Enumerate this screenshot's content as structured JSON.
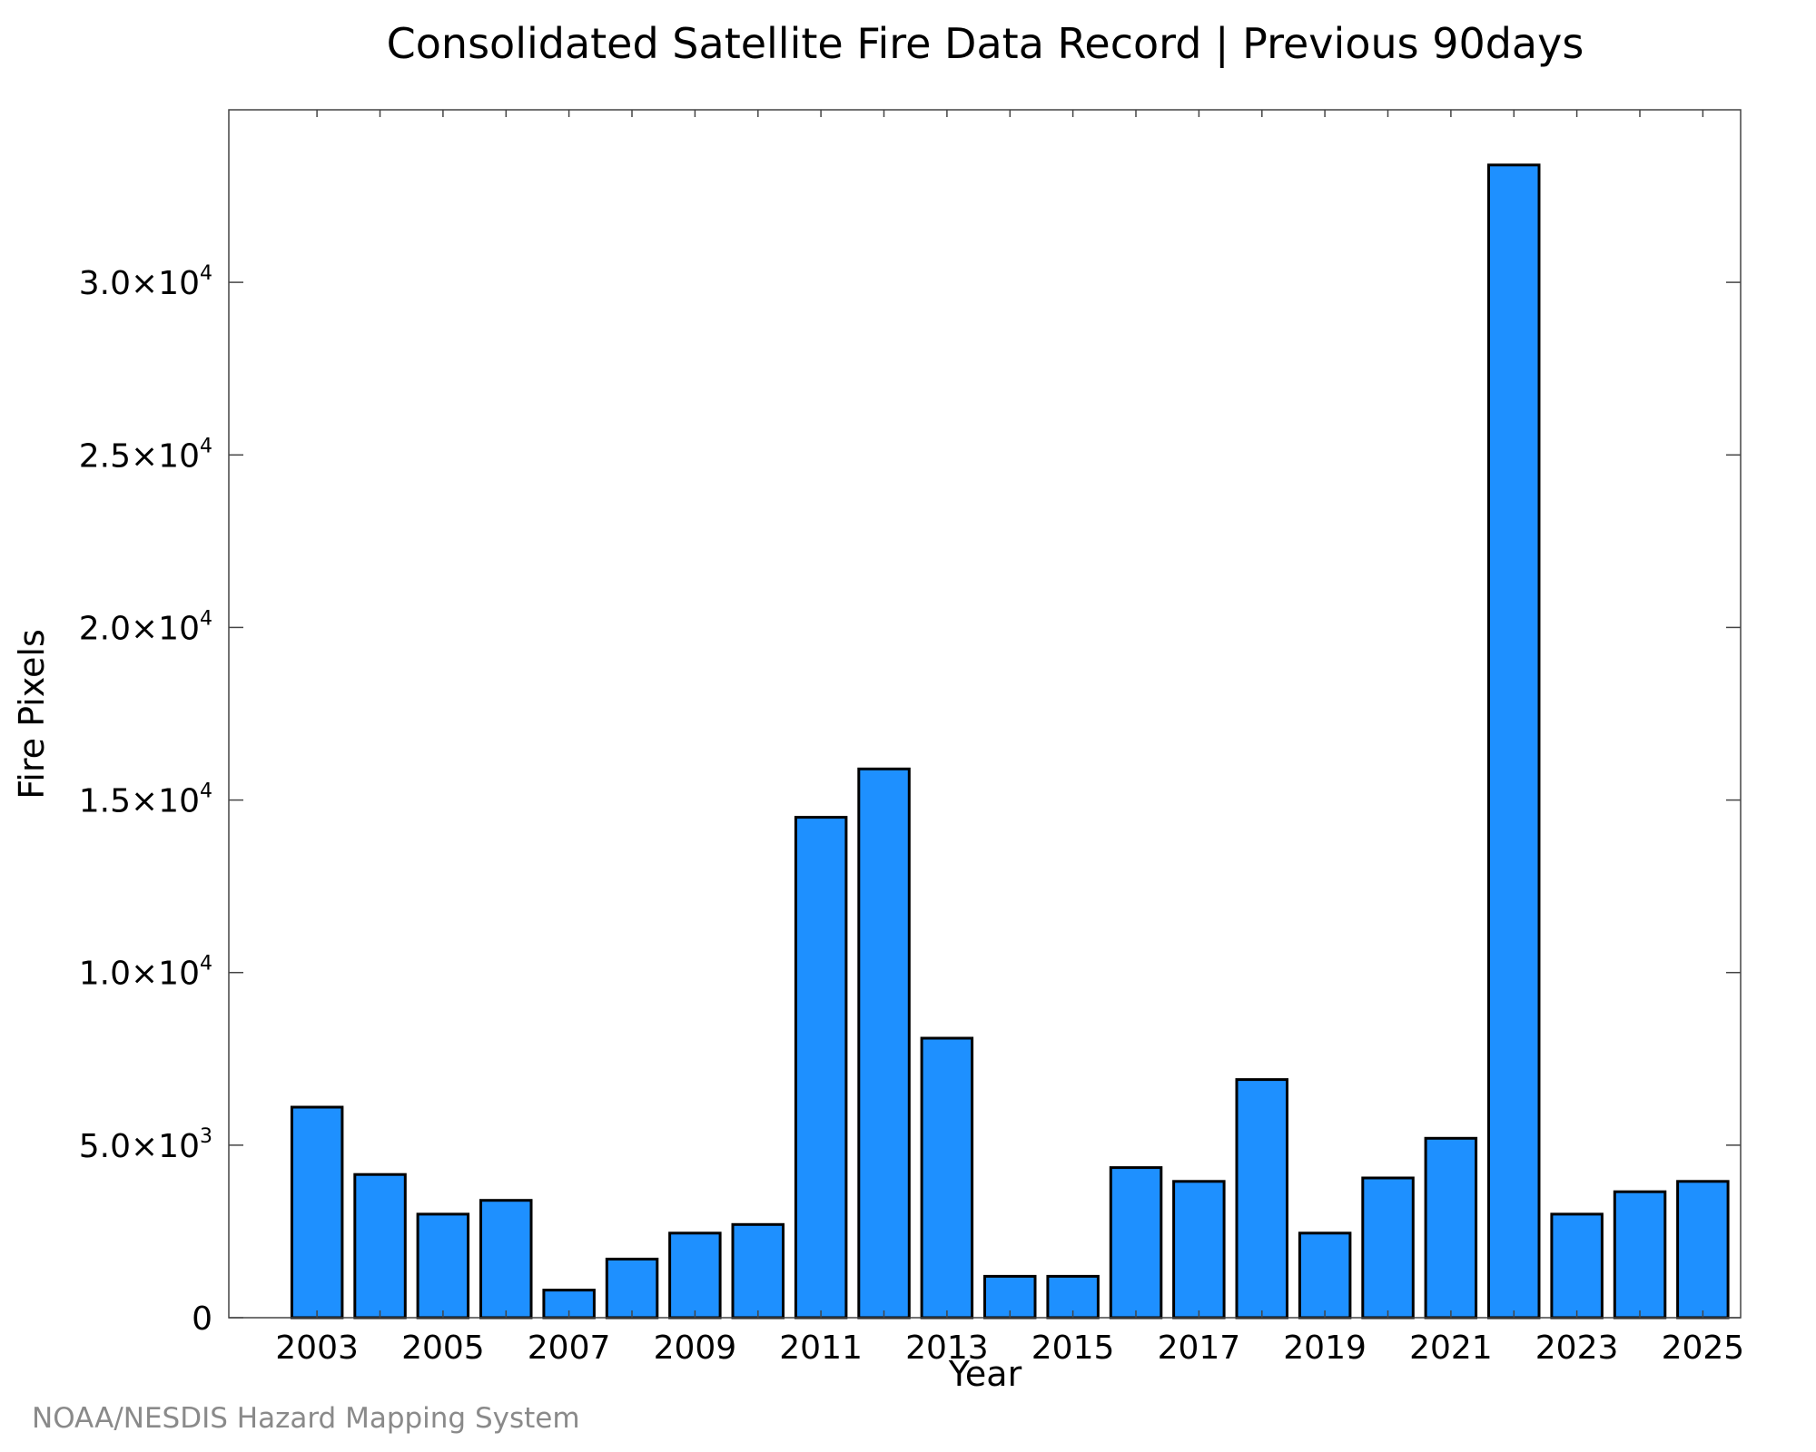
{
  "chart_data": {
    "type": "bar",
    "title": "Consolidated Satellite Fire Data Record | Previous 90days",
    "xlabel": "Year",
    "ylabel": "Fire Pixels",
    "categories": [
      "2003",
      "2004",
      "2005",
      "2006",
      "2007",
      "2008",
      "2009",
      "2010",
      "2011",
      "2012",
      "2013",
      "2014",
      "2015",
      "2016",
      "2017",
      "2018",
      "2019",
      "2020",
      "2021",
      "2022",
      "2023",
      "2024",
      "2025"
    ],
    "values": [
      6100,
      4150,
      3000,
      3400,
      800,
      1700,
      2450,
      2700,
      14500,
      15900,
      8100,
      1200,
      1200,
      4350,
      3950,
      6900,
      2450,
      4050,
      5200,
      33400,
      3000,
      3650,
      3950
    ],
    "x_tick_labels": [
      "2003",
      "2005",
      "2007",
      "2009",
      "2011",
      "2013",
      "2015",
      "2017",
      "2019",
      "2021",
      "2023",
      "2025"
    ],
    "y_ticks": [
      {
        "value": 0,
        "mantissa": "0",
        "exponent": ""
      },
      {
        "value": 5000,
        "mantissa": "5.0×10",
        "exponent": "3"
      },
      {
        "value": 10000,
        "mantissa": "1.0×10",
        "exponent": "4"
      },
      {
        "value": 15000,
        "mantissa": "1.5×10",
        "exponent": "4"
      },
      {
        "value": 20000,
        "mantissa": "2.0×10",
        "exponent": "4"
      },
      {
        "value": 25000,
        "mantissa": "2.5×10",
        "exponent": "4"
      },
      {
        "value": 30000,
        "mantissa": "3.0×10",
        "exponent": "4"
      }
    ],
    "ylim": [
      0,
      35000
    ],
    "xlim": [
      2001.6,
      2025.6
    ],
    "grid": false,
    "bar_color": "#1e90ff",
    "edge_color": "#000000"
  },
  "credit": "NOAA/NESDIS Hazard Mapping System"
}
